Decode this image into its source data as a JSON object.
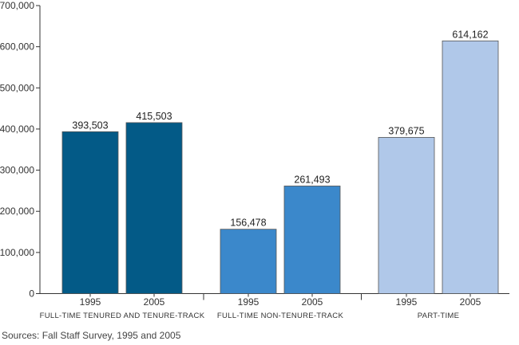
{
  "chart_data": {
    "type": "bar",
    "title": "",
    "xlabel": "",
    "ylabel": "",
    "ylim": [
      0,
      700000
    ],
    "yticks": [
      0,
      100000,
      200000,
      300000,
      400000,
      500000,
      600000,
      700000
    ],
    "ytick_labels": [
      "0",
      "100,000",
      "200,000",
      "300,000",
      "400,000",
      "500,000",
      "600,000",
      "700,000"
    ],
    "grid": false,
    "legend": "none",
    "groups": [
      {
        "label": "FULL-TIME TENURED AND TENURE-TRACK",
        "color": "#035a87",
        "bars": [
          {
            "year": "1995",
            "value": 393503,
            "value_label": "393,503"
          },
          {
            "year": "2005",
            "value": 415503,
            "value_label": "415,503"
          }
        ]
      },
      {
        "label": "FULL-TIME NON-TENURE-TRACK",
        "color": "#3b88cb",
        "bars": [
          {
            "year": "1995",
            "value": 156478,
            "value_label": "156,478"
          },
          {
            "year": "2005",
            "value": 261493,
            "value_label": "261,493"
          }
        ]
      },
      {
        "label": "PART-TIME",
        "color": "#b0c8e9",
        "bars": [
          {
            "year": "1995",
            "value": 379675,
            "value_label": "379,675"
          },
          {
            "year": "2005",
            "value": 614162,
            "value_label": "614,162"
          }
        ]
      }
    ]
  },
  "source_note": "Sources: Fall Staff Survey, 1995 and 2005"
}
